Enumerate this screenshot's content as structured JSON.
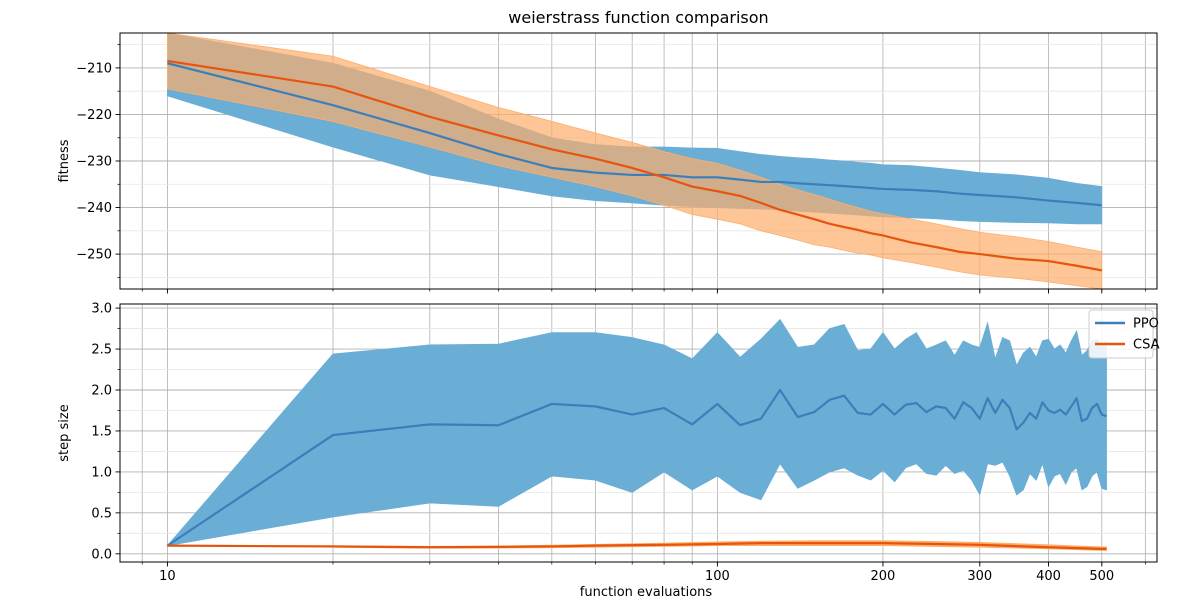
{
  "chart_data": {
    "type": "line",
    "title": "weierstrass function comparison",
    "xlabel": "function evaluations",
    "x_scale": "log",
    "xlim": [
      8.2,
      630
    ],
    "x_major_ticks": [
      10,
      100,
      200,
      300,
      400,
      500
    ],
    "x_major_tick_labels": [
      "10",
      "100",
      "200",
      "300",
      "400",
      "500"
    ],
    "grid": true,
    "legend": {
      "location": "upper-right-of-bottom-panel",
      "entries": [
        "PPO",
        "CSA"
      ]
    },
    "colors": {
      "PPO": "#3b7fba",
      "PPO_band": "#6aaed6",
      "CSA": "#e6550d",
      "CSA_band": "#fdae6b"
    },
    "panels": [
      {
        "name": "fitness",
        "ylabel": "fitness",
        "ylim": [
          -257.5,
          -202.5
        ],
        "y_ticks": [
          -210,
          -220,
          -230,
          -240,
          -250
        ],
        "y_tick_labels": [
          "−210",
          "−220",
          "−230",
          "−240",
          "−250"
        ],
        "series": [
          {
            "name": "PPO",
            "x": [
              10,
              20,
              30,
              40,
              50,
              60,
              70,
              80,
              90,
              100,
              110,
              120,
              130,
              140,
              150,
              160,
              170,
              180,
              190,
              200,
              225,
              250,
              275,
              300,
              350,
              400,
              450,
              500
            ],
            "values": [
              -209,
              -218,
              -224,
              -228.5,
              -231.5,
              -232.5,
              -233,
              -233,
              -233.5,
              -233.5,
              -234,
              -234.5,
              -234.5,
              -234.8,
              -235,
              -235.2,
              -235.4,
              -235.6,
              -235.8,
              -236,
              -236.2,
              -236.5,
              -237,
              -237.3,
              -237.8,
              -238.5,
              -239,
              -239.5
            ],
            "lower": [
              -216,
              -227,
              -233,
              -235.5,
              -237.5,
              -238.5,
              -239,
              -239.5,
              -239.8,
              -240,
              -240.2,
              -240.3,
              -240.5,
              -240.8,
              -241,
              -241.2,
              -241.4,
              -241.6,
              -241.8,
              -242,
              -242.2,
              -242.4,
              -242.8,
              -243,
              -243.2,
              -243.3,
              -243.5,
              -243.5
            ],
            "upper": [
              -202.5,
              -209,
              -215,
              -221,
              -225,
              -226.5,
              -227,
              -227,
              -227.2,
              -227.3,
              -228,
              -228.6,
              -229,
              -229.3,
              -229.5,
              -229.8,
              -230,
              -230.3,
              -230.5,
              -230.8,
              -231,
              -231.5,
              -232,
              -232.5,
              -233,
              -233.7,
              -234.8,
              -235.5
            ]
          },
          {
            "name": "CSA",
            "x": [
              10,
              20,
              30,
              40,
              50,
              60,
              70,
              80,
              90,
              100,
              110,
              120,
              130,
              140,
              150,
              160,
              170,
              180,
              190,
              200,
              225,
              250,
              275,
              300,
              350,
              400,
              450,
              500
            ],
            "values": [
              -208.5,
              -214,
              -220.5,
              -224.5,
              -227.5,
              -229.5,
              -231.5,
              -233.5,
              -235.5,
              -236.5,
              -237.5,
              -239,
              -240.5,
              -241.5,
              -242.5,
              -243.5,
              -244.2,
              -244.8,
              -245.5,
              -246,
              -247.5,
              -248.5,
              -249.5,
              -250,
              -251,
              -251.5,
              -252.5,
              -253.5
            ],
            "lower": [
              -214.5,
              -221.5,
              -227,
              -231,
              -233.5,
              -235.5,
              -237.5,
              -239.5,
              -241.5,
              -242.5,
              -243.5,
              -245,
              -246,
              -247,
              -248,
              -248.5,
              -249.2,
              -249.8,
              -250.2,
              -250.8,
              -251.8,
              -252.8,
              -253.8,
              -254.5,
              -255.2,
              -256,
              -256.8,
              -257.5
            ],
            "upper": [
              -202.5,
              -207.5,
              -214,
              -218.5,
              -221.5,
              -224,
              -226,
              -228,
              -229.5,
              -230.5,
              -232,
              -233.5,
              -235,
              -236.2,
              -237.2,
              -238.2,
              -239.2,
              -240,
              -240.8,
              -241.3,
              -242.5,
              -243.5,
              -244.5,
              -245.3,
              -246.3,
              -247.3,
              -248.5,
              -249.5
            ]
          }
        ]
      },
      {
        "name": "step size",
        "ylabel": "step size",
        "ylim": [
          -0.1,
          3.05
        ],
        "y_ticks": [
          0.0,
          0.5,
          1.0,
          1.5,
          2.0,
          2.5,
          3.0
        ],
        "y_tick_labels": [
          "0.0",
          "0.5",
          "1.0",
          "1.5",
          "2.0",
          "2.5",
          "3.0"
        ],
        "series": [
          {
            "name": "PPO",
            "x": [
              10,
              20,
              30,
              40,
              50,
              60,
              70,
              80,
              90,
              100,
              110,
              120,
              130,
              140,
              150,
              160,
              170,
              180,
              190,
              200,
              210,
              220,
              230,
              240,
              250,
              260,
              270,
              280,
              290,
              300,
              310,
              320,
              330,
              340,
              350,
              360,
              370,
              380,
              390,
              400,
              410,
              420,
              430,
              440,
              450,
              460,
              470,
              480,
              490,
              500,
              510
            ],
            "values": [
              0.1,
              1.45,
              1.58,
              1.57,
              1.83,
              1.8,
              1.7,
              1.78,
              1.58,
              1.83,
              1.57,
              1.65,
              2.0,
              1.67,
              1.73,
              1.88,
              1.93,
              1.72,
              1.7,
              1.83,
              1.7,
              1.82,
              1.84,
              1.73,
              1.8,
              1.78,
              1.65,
              1.85,
              1.78,
              1.65,
              1.9,
              1.72,
              1.88,
              1.78,
              1.52,
              1.6,
              1.72,
              1.65,
              1.85,
              1.75,
              1.72,
              1.76,
              1.7,
              1.8,
              1.9,
              1.62,
              1.65,
              1.78,
              1.83,
              1.7,
              1.68
            ],
            "lower": [
              0.1,
              0.45,
              0.62,
              0.58,
              0.95,
              0.9,
              0.75,
              1.0,
              0.78,
              0.95,
              0.75,
              0.66,
              1.1,
              0.8,
              0.9,
              1.0,
              1.05,
              0.96,
              0.9,
              1.02,
              0.88,
              1.05,
              1.1,
              0.98,
              0.96,
              1.08,
              0.98,
              1.02,
              0.9,
              0.72,
              1.1,
              1.08,
              1.12,
              0.95,
              0.72,
              0.78,
              0.98,
              0.9,
              1.1,
              0.82,
              0.95,
              0.98,
              0.85,
              1.0,
              1.05,
              0.78,
              0.82,
              0.95,
              1.0,
              0.8,
              0.78
            ],
            "upper": [
              0.1,
              2.44,
              2.55,
              2.56,
              2.7,
              2.7,
              2.64,
              2.55,
              2.38,
              2.7,
              2.4,
              2.62,
              2.86,
              2.52,
              2.55,
              2.75,
              2.8,
              2.48,
              2.5,
              2.7,
              2.5,
              2.62,
              2.7,
              2.5,
              2.55,
              2.6,
              2.42,
              2.6,
              2.55,
              2.52,
              2.82,
              2.38,
              2.64,
              2.6,
              2.3,
              2.45,
              2.52,
              2.4,
              2.6,
              2.62,
              2.5,
              2.55,
              2.45,
              2.6,
              2.72,
              2.42,
              2.48,
              2.6,
              2.62,
              2.55,
              2.6
            ]
          },
          {
            "name": "CSA",
            "x": [
              10,
              20,
              30,
              40,
              50,
              60,
              80,
              100,
              120,
              150,
              180,
              200,
              250,
              300,
              400,
              500,
              510
            ],
            "values": [
              0.1,
              0.09,
              0.08,
              0.085,
              0.09,
              0.1,
              0.11,
              0.12,
              0.13,
              0.13,
              0.13,
              0.13,
              0.12,
              0.11,
              0.08,
              0.06,
              0.06
            ],
            "lower": [
              0.1,
              0.08,
              0.07,
              0.07,
              0.075,
              0.08,
              0.09,
              0.1,
              0.1,
              0.1,
              0.1,
              0.1,
              0.09,
              0.08,
              0.06,
              0.04,
              0.04
            ],
            "upper": [
              0.1,
              0.1,
              0.09,
              0.095,
              0.105,
              0.115,
              0.13,
              0.145,
              0.155,
              0.16,
              0.16,
              0.16,
              0.15,
              0.14,
              0.11,
              0.085,
              0.085
            ]
          }
        ]
      }
    ]
  }
}
